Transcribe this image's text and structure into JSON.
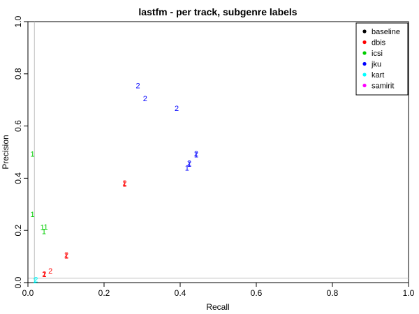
{
  "chart_data": {
    "type": "scatter",
    "title": "lastfm - per track, subgenre labels",
    "xlabel": "Recall",
    "ylabel": "Precision",
    "xlim": [
      0,
      1
    ],
    "ylim": [
      0,
      1
    ],
    "xticks": [
      "0.0",
      "0.2",
      "0.4",
      "0.6",
      "0.8",
      "1.0"
    ],
    "yticks": [
      "0.0",
      "0.2",
      "0.4",
      "0.6",
      "0.8",
      "1.0"
    ],
    "grid": false,
    "legend_position": "top-right",
    "reference_lines": {
      "vertical_x": 0.017,
      "horizontal_y": 0.017,
      "color": "#bebebe"
    },
    "series": [
      {
        "name": "baseline",
        "color": "#000000",
        "points": []
      },
      {
        "name": "dbis",
        "color": "#ff0000",
        "points": [
          {
            "x": 0.043,
            "y": 0.032,
            "label": "1"
          },
          {
            "x": 0.043,
            "y": 0.034,
            "label": "2"
          },
          {
            "x": 0.059,
            "y": 0.045,
            "label": "2"
          },
          {
            "x": 0.101,
            "y": 0.103,
            "label": "1"
          },
          {
            "x": 0.101,
            "y": 0.107,
            "label": "2"
          },
          {
            "x": 0.254,
            "y": 0.378,
            "label": "1"
          },
          {
            "x": 0.254,
            "y": 0.382,
            "label": "2"
          }
        ]
      },
      {
        "name": "icsi",
        "color": "#00cd00",
        "points": [
          {
            "x": 0.012,
            "y": 0.493,
            "label": "1"
          },
          {
            "x": 0.012,
            "y": 0.262,
            "label": "1"
          },
          {
            "x": 0.038,
            "y": 0.212,
            "label": "1"
          },
          {
            "x": 0.047,
            "y": 0.214,
            "label": "1"
          },
          {
            "x": 0.042,
            "y": 0.197,
            "label": "1"
          }
        ]
      },
      {
        "name": "jku",
        "color": "#0000ff",
        "points": [
          {
            "x": 0.289,
            "y": 0.756,
            "label": "2"
          },
          {
            "x": 0.308,
            "y": 0.706,
            "label": "2"
          },
          {
            "x": 0.391,
            "y": 0.669,
            "label": "2"
          },
          {
            "x": 0.442,
            "y": 0.49,
            "label": "1"
          },
          {
            "x": 0.442,
            "y": 0.494,
            "label": "2"
          },
          {
            "x": 0.424,
            "y": 0.454,
            "label": "1"
          },
          {
            "x": 0.424,
            "y": 0.458,
            "label": "2"
          },
          {
            "x": 0.418,
            "y": 0.44,
            "label": "1"
          }
        ]
      },
      {
        "name": "kart",
        "color": "#00ffff",
        "points": [
          {
            "x": 0.018,
            "y": 0.008,
            "label": "1"
          },
          {
            "x": 0.021,
            "y": 0.012,
            "label": "2"
          }
        ]
      },
      {
        "name": "samirit",
        "color": "#ff00ff",
        "points": []
      }
    ]
  }
}
